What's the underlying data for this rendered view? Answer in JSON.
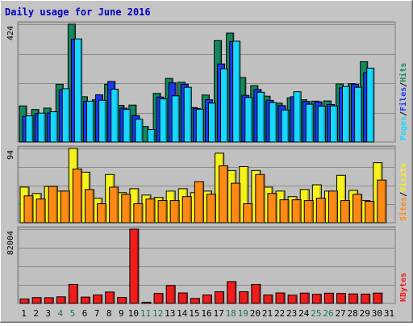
{
  "chart_data": {
    "type": "bar",
    "title": "Daily usage for June 2016",
    "categories": [
      "1",
      "2",
      "3",
      "4",
      "5",
      "6",
      "7",
      "8",
      "9",
      "10",
      "11",
      "12",
      "13",
      "14",
      "15",
      "16",
      "17",
      "18",
      "19",
      "20",
      "21",
      "22",
      "23",
      "24",
      "25",
      "26",
      "27",
      "28",
      "29",
      "30",
      "31"
    ],
    "weekend_days": [
      "4",
      "5",
      "11",
      "12",
      "18",
      "19",
      "25",
      "26"
    ],
    "panels": [
      {
        "id": "hits",
        "max_label": "424",
        "ylim": [
          0,
          424
        ],
        "legend": [
          "Pages",
          "Files",
          "Hits"
        ],
        "series": [
          {
            "name": "Hits",
            "color": "#138a5d",
            "values": [
              130,
              117,
              122,
              208,
              424,
              163,
              152,
              208,
              132,
              133,
              56,
              175,
              229,
              215,
              124,
              169,
              365,
              392,
              232,
              203,
              165,
              140,
              159,
              152,
              147,
              148,
              209,
              210,
              289,
              null,
              null
            ]
          },
          {
            "name": "Files",
            "color": "#1a38f0",
            "values": [
              92,
              102,
              104,
              188,
              370,
              146,
              170,
              218,
              122,
              95,
              null,
              162,
              213,
              208,
              121,
              152,
              281,
              362,
              168,
              189,
              150,
              131,
              163,
              146,
              145,
              135,
              195,
              208,
              250,
              null,
              null
            ]
          },
          {
            "name": "Pages",
            "color": "#18d8ff",
            "values": [
              94,
              104,
              109,
              192,
              371,
              147,
              150,
              190,
              117,
              82,
              45,
              155,
              166,
              197,
              118,
              140,
              263,
              363,
              160,
              179,
              142,
              115,
              181,
              136,
              129,
              130,
              200,
              197,
              266,
              null,
              null
            ]
          }
        ]
      },
      {
        "id": "visits",
        "max_label": "94",
        "ylim": [
          0,
          94
        ],
        "legend": [
          "Sites",
          "Visits"
        ],
        "series": [
          {
            "name": "Visits",
            "color": "#f6f21c",
            "values": [
              45,
              37,
              46,
              40,
              94,
              64,
              31,
              61,
              38,
              43,
              35,
              32,
              40,
              43,
              38,
              40,
              88,
              66,
              71,
              66,
              45,
              40,
              33,
              42,
              48,
              40,
              60,
              41,
              28,
              76,
              null
            ]
          },
          {
            "name": "Sites",
            "color": "#ff8a13",
            "values": [
              34,
              30,
              46,
              40,
              68,
              42,
              24,
              45,
              36,
              24,
              30,
              28,
              28,
              33,
              52,
              36,
              72,
              50,
              24,
              61,
              37,
              29,
              29,
              28,
              31,
              40,
              28,
              36,
              27,
              54,
              null
            ]
          }
        ]
      },
      {
        "id": "kbytes",
        "max_label": "82004",
        "ylim": [
          0,
          82004
        ],
        "legend": [
          "KBytes"
        ],
        "series": [
          {
            "name": "KBytes",
            "color": "#f01c1c",
            "values": [
              4800,
              6500,
              6300,
              7300,
              21000,
              7000,
              9300,
              12600,
              6600,
              82004,
              1300,
              11000,
              19800,
              11600,
              5500,
              9300,
              12900,
              24100,
              12900,
              21000,
              9300,
              11600,
              9100,
              11400,
              10100,
              11300,
              11000,
              10500,
              10300,
              11400,
              null
            ]
          }
        ]
      }
    ]
  }
}
